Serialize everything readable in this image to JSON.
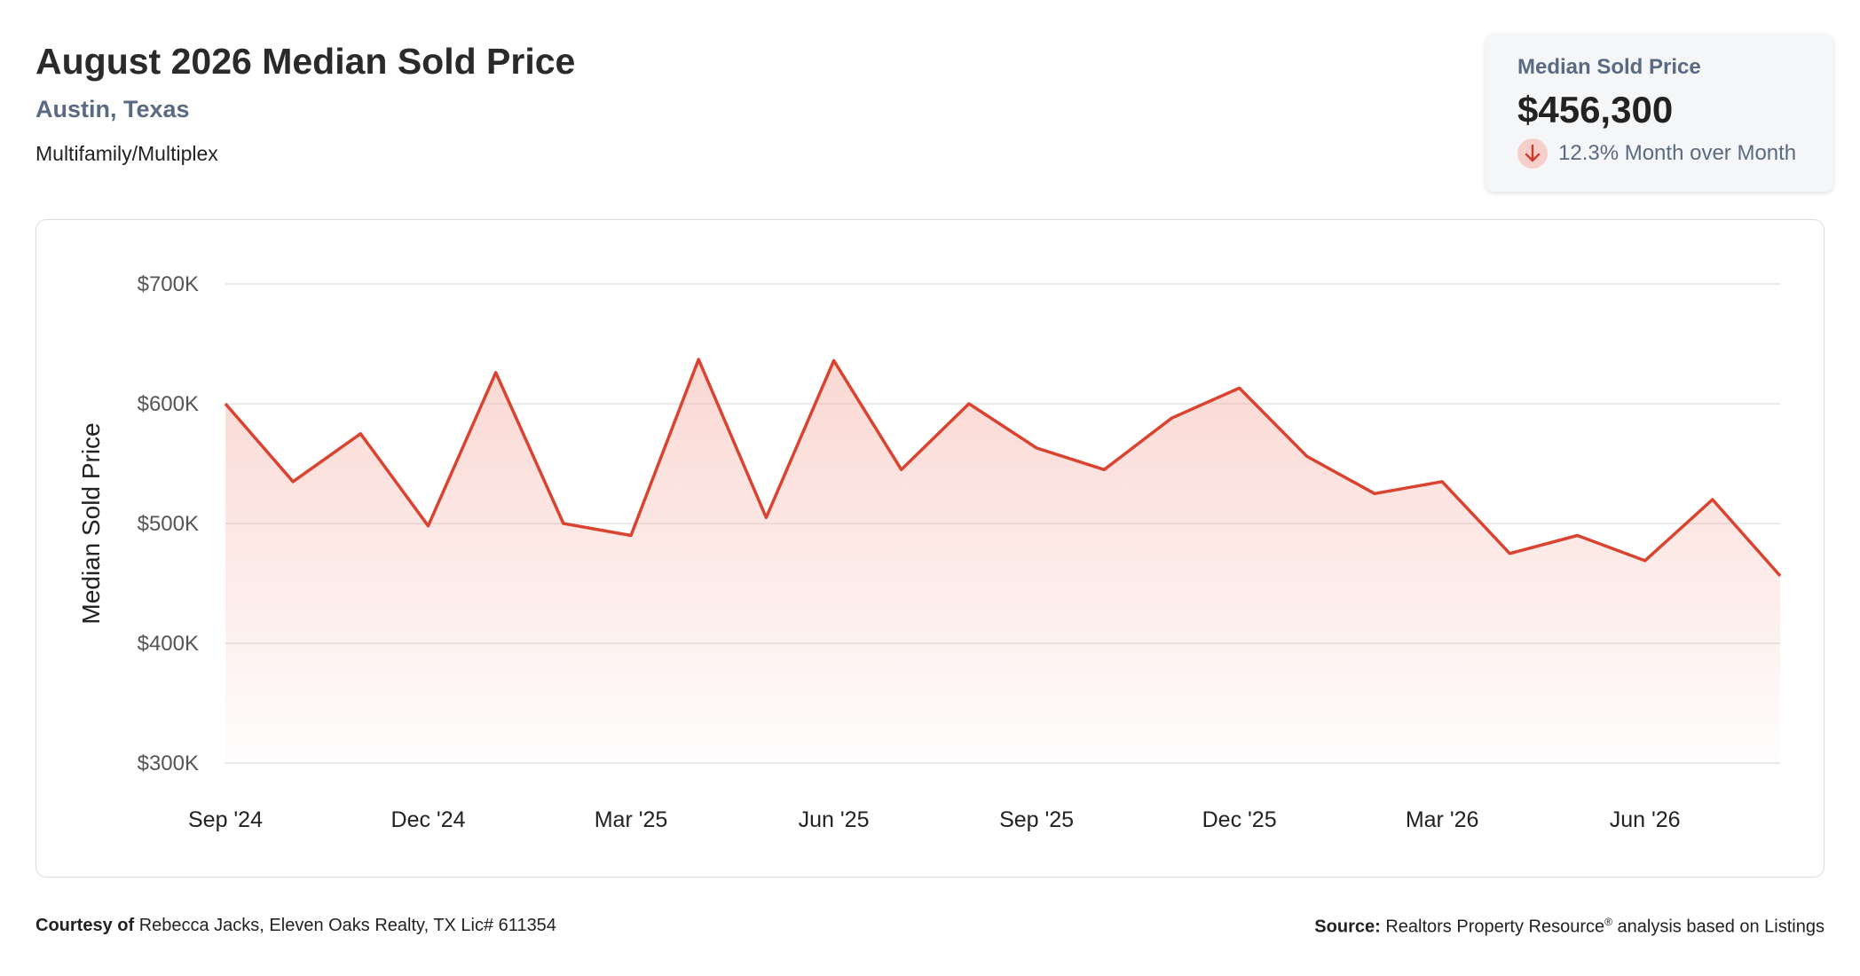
{
  "header": {
    "title": "August 2026 Median Sold Price",
    "location": "Austin, Texas",
    "property_type": "Multifamily/Multiplex"
  },
  "kpi": {
    "label": "Median Sold Price",
    "value": "$456,300",
    "change_text": "12.3% Month over Month",
    "direction": "down",
    "down_color": "#d13a2a"
  },
  "footer": {
    "courtesy_label": "Courtesy of",
    "courtesy_text": "Rebecca Jacks, Eleven Oaks Realty, TX Lic# 611354",
    "source_label": "Source:",
    "source_text": "Realtors Property Resource",
    "source_sup": "®",
    "source_suffix": " analysis based on Listings"
  },
  "chart_data": {
    "type": "area",
    "ylabel": "Median Sold Price",
    "ylim": [
      300000,
      700000
    ],
    "y_ticks": [
      {
        "value": 700000,
        "label": "$700K"
      },
      {
        "value": 600000,
        "label": "$600K"
      },
      {
        "value": 500000,
        "label": "$500K"
      },
      {
        "value": 400000,
        "label": "$400K"
      },
      {
        "value": 300000,
        "label": "$300K"
      }
    ],
    "x_ticks": [
      {
        "index": 0,
        "label": "Sep '24"
      },
      {
        "index": 3,
        "label": "Dec '24"
      },
      {
        "index": 6,
        "label": "Mar '25"
      },
      {
        "index": 9,
        "label": "Jun '25"
      },
      {
        "index": 12,
        "label": "Sep '25"
      },
      {
        "index": 15,
        "label": "Dec '25"
      },
      {
        "index": 18,
        "label": "Mar '26"
      },
      {
        "index": 21,
        "label": "Jun '26"
      }
    ],
    "x": [
      "Sep '24",
      "Oct '24",
      "Nov '24",
      "Dec '24",
      "Jan '25",
      "Feb '25",
      "Mar '25",
      "Apr '25",
      "May '25",
      "Jun '25",
      "Jul '25",
      "Aug '25",
      "Sep '25",
      "Oct '25",
      "Nov '25",
      "Dec '25",
      "Jan '26",
      "Feb '26",
      "Mar '26",
      "Apr '26",
      "May '26",
      "Jun '26",
      "Jul '26",
      "Aug '26"
    ],
    "values": [
      600000,
      535000,
      575000,
      498000,
      626000,
      500000,
      490000,
      637000,
      505000,
      636000,
      545000,
      600000,
      563000,
      545000,
      588000,
      613000,
      556000,
      525000,
      535000,
      475000,
      490000,
      469000,
      520000,
      456300
    ],
    "line_color": "#d9432f",
    "fill_color": "#f4a79c",
    "grid": true,
    "legend": "none"
  }
}
